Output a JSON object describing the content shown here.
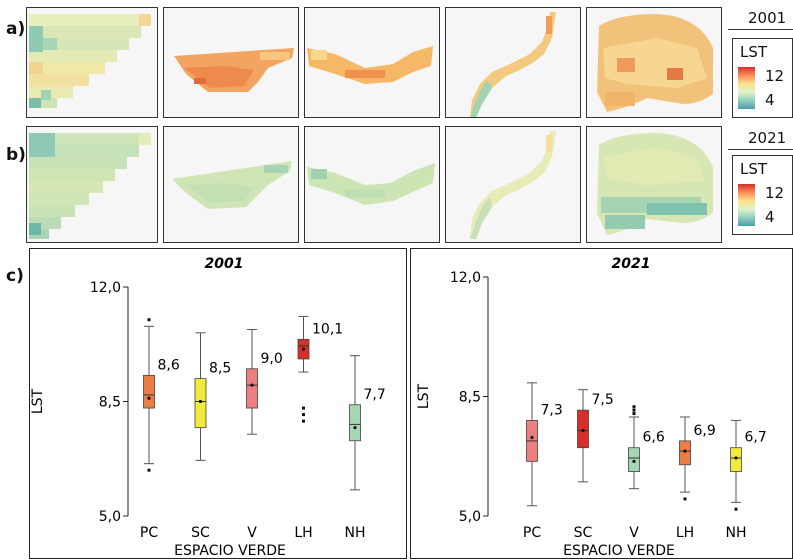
{
  "row_labels": {
    "a": "a)",
    "b": "b)",
    "c": "c)"
  },
  "maps": {
    "years": [
      "2001",
      "2021"
    ],
    "legend": {
      "title": "LST",
      "high": "12",
      "low": "4"
    }
  },
  "chart_data": [
    {
      "type": "boxplot",
      "title": "2001",
      "xlabel": "ESPACIO VERDE",
      "ylabel": "LST",
      "ylim": [
        5.0,
        12.0
      ],
      "yticks": [
        "12,0",
        "8,5",
        "5,0"
      ],
      "categories": [
        "PC",
        "SC",
        "V",
        "LH",
        "NH"
      ],
      "colors": [
        "#ec7d45",
        "#f2ea3c",
        "#ee7f80",
        "#d92f2a",
        "#a6d7b5"
      ],
      "boxes": [
        {
          "min": 6.6,
          "q1": 8.3,
          "median": 8.7,
          "q3": 9.3,
          "max": 10.8,
          "mean": 8.6,
          "outliers": [
            6.4,
            11.0
          ],
          "label": "8,6"
        },
        {
          "min": 6.7,
          "q1": 7.7,
          "median": 8.5,
          "q3": 9.2,
          "max": 10.6,
          "mean": 8.5,
          "outliers": [],
          "label": "8,5"
        },
        {
          "min": 7.5,
          "q1": 8.3,
          "median": 9.0,
          "q3": 9.5,
          "max": 10.7,
          "mean": 9.0,
          "outliers": [],
          "label": "9,0"
        },
        {
          "min": 9.4,
          "q1": 9.8,
          "median": 10.2,
          "q3": 10.4,
          "max": 11.1,
          "mean": 10.1,
          "outliers": [
            8.3,
            8.1,
            7.9
          ],
          "label": "10,1"
        },
        {
          "min": 5.8,
          "q1": 7.3,
          "median": 7.8,
          "q3": 8.4,
          "max": 9.9,
          "mean": 7.7,
          "outliers": [],
          "label": "7,7"
        }
      ]
    },
    {
      "type": "boxplot",
      "title": "2021",
      "xlabel": "ESPACIO VERDE",
      "ylabel": "LST",
      "ylim": [
        5.0,
        12.0
      ],
      "yticks": [
        "12,0",
        "8,5",
        "5,0"
      ],
      "categories": [
        "PC",
        "SC",
        "V",
        "LH",
        "NH"
      ],
      "colors": [
        "#ee7f80",
        "#d92f2a",
        "#a6d7b5",
        "#ec7d45",
        "#f2ea3c"
      ],
      "boxes": [
        {
          "min": 5.3,
          "q1": 6.6,
          "median": 7.2,
          "q3": 7.8,
          "max": 8.9,
          "mean": 7.3,
          "outliers": [],
          "label": "7,3"
        },
        {
          "min": 6.0,
          "q1": 7.0,
          "median": 7.5,
          "q3": 8.1,
          "max": 8.7,
          "mean": 7.5,
          "outliers": [],
          "label": "7,5"
        },
        {
          "min": 5.8,
          "q1": 6.3,
          "median": 6.7,
          "q3": 7.0,
          "max": 7.9,
          "mean": 6.6,
          "outliers": [
            8.2,
            8.1,
            8.0
          ],
          "label": "6,6"
        },
        {
          "min": 5.7,
          "q1": 6.5,
          "median": 6.9,
          "q3": 7.2,
          "max": 7.9,
          "mean": 6.9,
          "outliers": [
            5.5
          ],
          "label": "6,9"
        },
        {
          "min": 5.4,
          "q1": 6.3,
          "median": 6.7,
          "q3": 7.0,
          "max": 7.8,
          "mean": 6.7,
          "outliers": [
            5.2
          ],
          "label": "6,7"
        }
      ]
    }
  ]
}
